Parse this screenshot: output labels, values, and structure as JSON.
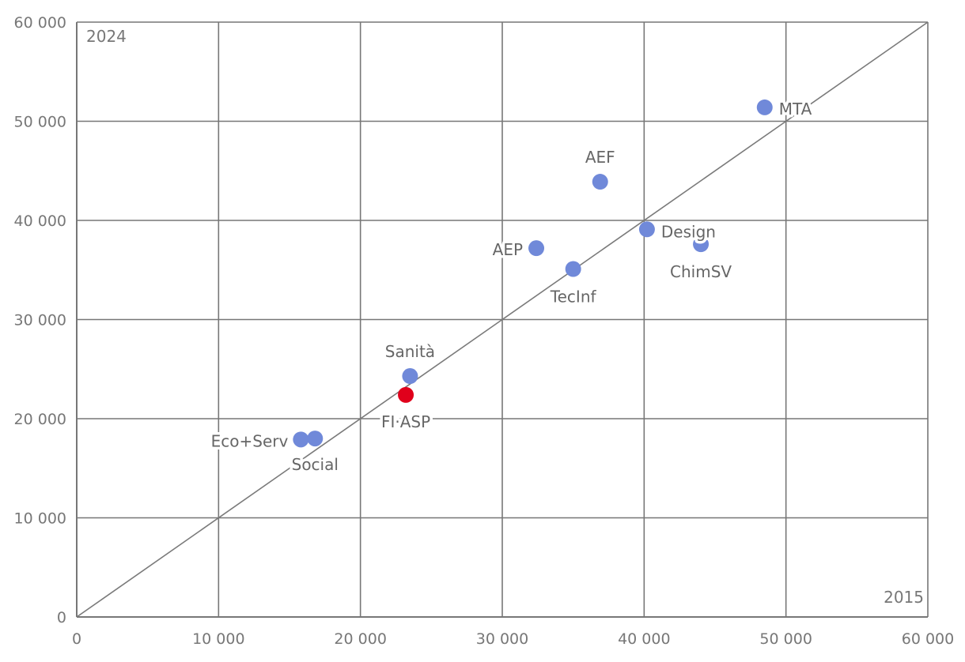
{
  "chart_data": {
    "type": "scatter",
    "title": "",
    "xlabel": "2015",
    "ylabel": "2024",
    "xlim": [
      0,
      60000
    ],
    "ylim": [
      0,
      60000
    ],
    "x_ticks": [
      "0",
      "10 000",
      "20 000",
      "30 000",
      "40 000",
      "50 000",
      "60 000"
    ],
    "y_ticks": [
      "0",
      "10 000",
      "20 000",
      "30 000",
      "40 000",
      "50 000",
      "60 000"
    ],
    "grid": true,
    "reference_line": "y = x",
    "colors": {
      "default": "#7089d9",
      "highlight": "#e0001b",
      "grid": "#777777",
      "text": "#666666"
    },
    "points": [
      {
        "label": "MTA",
        "x": 48500,
        "y": 51400,
        "highlight": false
      },
      {
        "label": "AEF",
        "x": 36900,
        "y": 43900,
        "highlight": false
      },
      {
        "label": "Design",
        "x": 40200,
        "y": 39100,
        "highlight": false
      },
      {
        "label": "ChimSV",
        "x": 44000,
        "y": 37600,
        "highlight": false
      },
      {
        "label": "AEP",
        "x": 32400,
        "y": 37200,
        "highlight": false
      },
      {
        "label": "TecInf",
        "x": 35000,
        "y": 35100,
        "highlight": false
      },
      {
        "label": "Sanità",
        "x": 23500,
        "y": 24300,
        "highlight": false
      },
      {
        "label": "FI·ASP",
        "x": 23200,
        "y": 22400,
        "highlight": true
      },
      {
        "label": "Eco+Serv",
        "x": 15800,
        "y": 17900,
        "highlight": false
      },
      {
        "label": "Social",
        "x": 16800,
        "y": 18000,
        "highlight": false
      }
    ]
  }
}
